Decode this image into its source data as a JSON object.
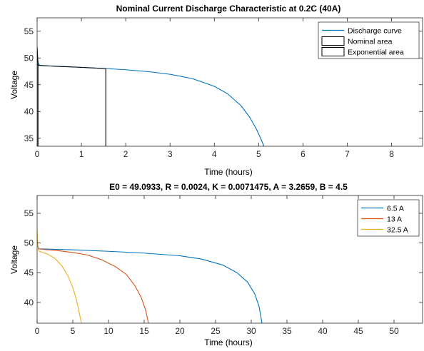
{
  "chart_data": [
    {
      "type": "line",
      "title": "Nominal Current Discharge Characteristic at 0.2C (40A)",
      "xlabel": "Time (hours)",
      "ylabel": "Voltage",
      "xlim": [
        0,
        8.7
      ],
      "ylim": [
        33.5,
        57.5
      ],
      "xticks": [
        0,
        1,
        2,
        3,
        4,
        5,
        6,
        7,
        8
      ],
      "yticks": [
        35,
        40,
        45,
        50,
        55
      ],
      "legend_position": "top-right",
      "legend": [
        {
          "label": "Discharge curve",
          "kind": "line",
          "color": "#0072BD"
        },
        {
          "label": "Nominal area",
          "kind": "box",
          "color": "#000000"
        },
        {
          "label": "Exponential area",
          "kind": "box",
          "color": "#000000"
        }
      ],
      "series": [
        {
          "name": "Discharge curve",
          "color": "#0072BD",
          "x": [
            0,
            0.01,
            0.02,
            0.04,
            0.07,
            0.1,
            0.3,
            0.6,
            1.0,
            1.5,
            2.0,
            2.5,
            3.0,
            3.5,
            4.0,
            4.3,
            4.6,
            4.8,
            4.95,
            5.05,
            5.12
          ],
          "y": [
            52.0,
            50.5,
            49.3,
            48.75,
            48.6,
            48.55,
            48.5,
            48.4,
            48.25,
            48.05,
            47.8,
            47.45,
            46.95,
            46.15,
            44.7,
            43.3,
            41.1,
            38.9,
            36.7,
            34.9,
            33.5
          ]
        },
        {
          "name": "Exponential area",
          "color": "#000000",
          "x": [
            0,
            0,
            0.005,
            0.01,
            0.015,
            0.02,
            0.02
          ],
          "y": [
            33.5,
            52.0,
            51.2,
            50.2,
            49.5,
            48.8,
            33.5
          ]
        },
        {
          "name": "Nominal area",
          "color": "#000000",
          "x": [
            0,
            0.02,
            0.1,
            0.5,
            1.0,
            1.55,
            1.55
          ],
          "y": [
            48.7,
            48.65,
            48.6,
            48.4,
            48.25,
            48.0,
            33.5
          ]
        }
      ]
    },
    {
      "type": "line",
      "title": "E0 = 49.0933, R = 0.0024, K = 0.0071475, A = 3.2659, B = 4.5",
      "xlabel": "Time (hours)",
      "ylabel": "Voltage",
      "xlim": [
        0,
        54
      ],
      "ylim": [
        36.5,
        58
      ],
      "xticks": [
        0,
        5,
        10,
        15,
        20,
        25,
        30,
        35,
        40,
        45,
        50
      ],
      "yticks": [
        40,
        45,
        50,
        55
      ],
      "legend_position": "top-right",
      "legend": [
        {
          "label": "6.5 A",
          "kind": "line",
          "color": "#0072BD"
        },
        {
          "label": "13 A",
          "kind": "line",
          "color": "#D95319"
        },
        {
          "label": "32.5 A",
          "kind": "line",
          "color": "#EDB120"
        }
      ],
      "series": [
        {
          "name": "6.5 A",
          "color": "#0072BD",
          "x": [
            0,
            0.05,
            0.15,
            0.3,
            0.6,
            2,
            5,
            10,
            15,
            20,
            23,
            26,
            28,
            29.5,
            30.5,
            31.1,
            31.5
          ],
          "y": [
            51.0,
            50.0,
            49.3,
            49.0,
            49.0,
            48.95,
            48.85,
            48.6,
            48.3,
            47.85,
            47.3,
            46.3,
            45.0,
            43.4,
            41.4,
            39.3,
            36.5
          ]
        },
        {
          "name": "13 A",
          "color": "#D95319",
          "x": [
            0,
            0.05,
            0.15,
            0.3,
            1,
            3,
            5,
            7,
            9,
            11,
            12.5,
            13.7,
            14.6,
            15.2,
            15.6
          ],
          "y": [
            51.5,
            50.0,
            49.2,
            49.0,
            48.9,
            48.7,
            48.4,
            48.0,
            47.2,
            46.0,
            44.7,
            42.8,
            40.8,
            38.7,
            36.5
          ]
        },
        {
          "name": "32.5 A",
          "color": "#EDB120",
          "x": [
            0,
            0.05,
            0.15,
            0.3,
            0.6,
            1.5,
            2.5,
            3.5,
            4.3,
            5.0,
            5.5,
            5.9,
            6.2
          ],
          "y": [
            52.3,
            50.5,
            49.0,
            48.6,
            48.5,
            48.1,
            47.4,
            46.1,
            44.5,
            42.5,
            40.5,
            38.3,
            36.5
          ]
        }
      ]
    }
  ]
}
